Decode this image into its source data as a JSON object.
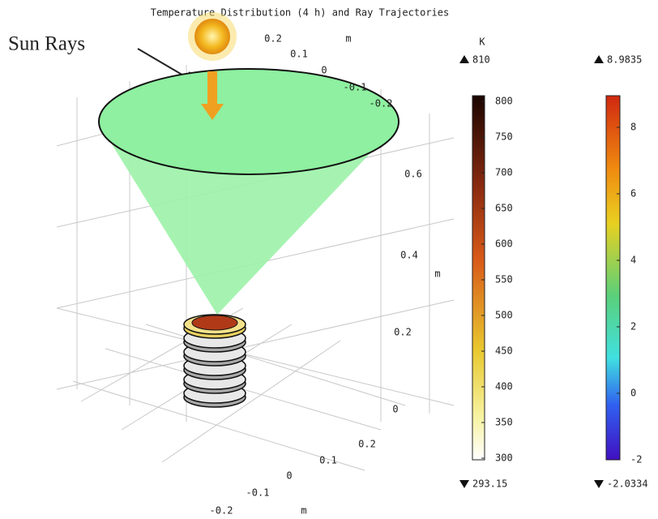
{
  "title": "Temperature Distribution (4 h) and Ray Trajectories",
  "annotation": "Sun Rays",
  "axes": {
    "top_ticks": [
      0.2,
      0.1,
      0,
      -0.1,
      -0.2
    ],
    "top_unit": "m",
    "vertical_ticks": [
      0.6,
      0.4,
      0.2,
      0
    ],
    "vertical_unit": "m",
    "bottom_ticks": [
      0.2,
      0.1,
      0,
      -0.1,
      -0.2
    ],
    "bottom_unit": "m"
  },
  "colorbars": [
    {
      "unit": "K",
      "max": 810,
      "min": 293.15,
      "ticks": [
        800,
        750,
        700,
        650,
        600,
        550,
        500,
        450,
        400,
        350,
        300
      ]
    },
    {
      "max": 8.9835,
      "min": -2.0334,
      "ticks": [
        8,
        6,
        4,
        2,
        0,
        -2
      ]
    }
  ]
}
